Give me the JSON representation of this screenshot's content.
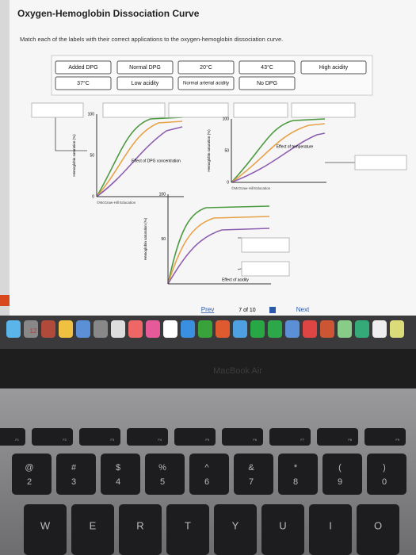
{
  "header": {
    "title": "Oxygen-Hemoglobin Dissociation Curve",
    "instructions": "Match each of the labels with their correct applications to the oxygen-hemoglobin dissociation curve."
  },
  "labels": [
    "Added DPG",
    "Normal DPG",
    "20°C",
    "43°C",
    "High acidity",
    "37°C",
    "Low acidity",
    "Normal arterial acidity",
    "No DPG"
  ],
  "graphs": [
    {
      "ymax": "100",
      "ymid": "50",
      "ymin": "0",
      "ylabel": "Hemoglobin saturation (%)",
      "caption": "Effect of DPG concentration",
      "credit": "©McGraw-Hill Education"
    },
    {
      "ymax": "100",
      "ymid": "50",
      "ymin": "0",
      "ylabel": "Hemoglobin saturation (%)",
      "caption": "Effect of temperature",
      "credit": "©McGraw-Hill Education"
    },
    {
      "ymax": "100",
      "ymid": "50",
      "ylabel": "Hemoglobin saturation (%)",
      "caption": "Effect of acidity"
    }
  ],
  "nav": {
    "prev": "Prev",
    "page": "7 of 10",
    "next": "Next"
  },
  "dock": {
    "calendar": "12"
  },
  "bezel": {
    "brand": "MacBook Air"
  },
  "keyboard": {
    "fn": [
      "F1",
      "F2",
      "F3",
      "F4",
      "F5",
      "F6",
      "F7",
      "F8",
      "F9"
    ],
    "numbers": [
      [
        "@",
        "2"
      ],
      [
        "#",
        "3"
      ],
      [
        "$",
        "4"
      ],
      [
        "%",
        "5"
      ],
      [
        "^",
        "6"
      ],
      [
        "&",
        "7"
      ],
      [
        "*",
        "8"
      ],
      [
        "(",
        "9"
      ],
      [
        ")",
        "0"
      ]
    ],
    "letters": [
      "W",
      "E",
      "R",
      "T",
      "Y",
      "U",
      "I",
      "O"
    ]
  }
}
